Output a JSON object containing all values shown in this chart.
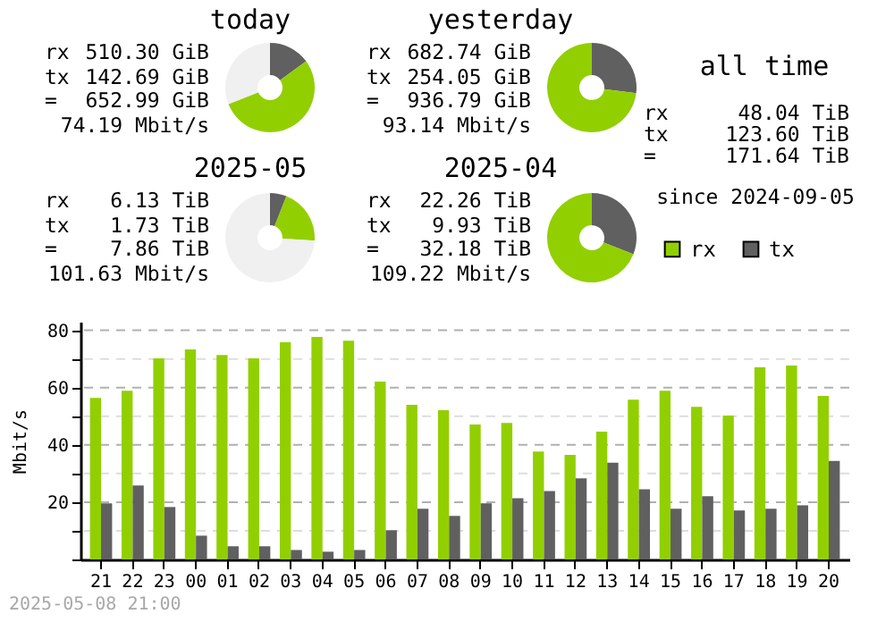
{
  "chart_data": [
    {
      "type": "donut",
      "title": "today",
      "categories": [
        null,
        null,
        null
      ],
      "values": [
        15,
        54,
        31
      ],
      "colors": [
        "#606060",
        "#92cf00",
        "#f0f0f0"
      ],
      "annotations": [
        "rx 510.30 GiB",
        "tx 142.69 GiB",
        "= 652.99 GiB",
        "74.19 Mbit/s"
      ]
    },
    {
      "type": "donut",
      "title": "yesterday",
      "categories": [
        null,
        null
      ],
      "values": [
        27,
        73
      ],
      "colors": [
        "#606060",
        "#92cf00"
      ],
      "annotations": [
        "rx 682.74 GiB",
        "tx 254.05 GiB",
        "= 936.79 GiB",
        "93.14 Mbit/s"
      ]
    },
    {
      "type": "other",
      "title": "all time",
      "annotations": [
        "rx 48.04 TiB",
        "tx 123.60 TiB",
        "= 171.64 TiB",
        "since 2024-09-05"
      ]
    },
    {
      "type": "donut",
      "title": "2025-05",
      "categories": [
        null,
        null,
        null
      ],
      "values": [
        6,
        20,
        74
      ],
      "colors": [
        "#606060",
        "#92cf00",
        "#f0f0f0"
      ],
      "annotations": [
        "rx 6.13 TiB",
        "tx 1.73 TiB",
        "= 7.86 TiB",
        "101.63 Mbit/s"
      ]
    },
    {
      "type": "donut",
      "title": "2025-04",
      "categories": [
        null,
        null
      ],
      "values": [
        31,
        69
      ],
      "colors": [
        "#606060",
        "#92cf00"
      ],
      "annotations": [
        "rx 22.26 TiB",
        "tx 9.93 TiB",
        "= 32.18 TiB",
        "109.22 Mbit/s"
      ]
    },
    {
      "type": "bar",
      "categories": [
        "21",
        "22",
        "23",
        "00",
        "01",
        "02",
        "03",
        "04",
        "05",
        "06",
        "07",
        "08",
        "09",
        "10",
        "11",
        "12",
        "13",
        "14",
        "15",
        "16",
        "17",
        "18",
        "19",
        "20"
      ],
      "ylabel": "Mbit/s",
      "ylim": [
        0,
        83
      ],
      "yticks": [
        {
          "value": 0,
          "label": null
        },
        {
          "value": 10,
          "label": null
        },
        20,
        {
          "value": 30,
          "label": null
        },
        40,
        {
          "value": 50,
          "label": null
        },
        60,
        {
          "value": 70,
          "label": null
        },
        80
      ],
      "grid": "y",
      "legend": "top right",
      "annotations": [
        "2025-05-08 21:00"
      ],
      "series": [
        {
          "name": "rx",
          "color": "#92cf00",
          "values": [
            56.4,
            58.9,
            70.2,
            73.3,
            71.4,
            70.2,
            75.8,
            77.7,
            76.4,
            62.1,
            54.0,
            52.1,
            47.1,
            47.7,
            37.7,
            36.5,
            44.6,
            55.8,
            58.9,
            53.3,
            50.2,
            67.1,
            67.7,
            57.1
          ]
        },
        {
          "name": "tx",
          "color": "#606060",
          "values": [
            19.6,
            25.8,
            18.3,
            8.3,
            4.6,
            4.6,
            3.3,
            2.7,
            3.3,
            10.2,
            17.7,
            15.2,
            19.6,
            21.4,
            23.9,
            28.3,
            33.8,
            24.5,
            17.7,
            22.1,
            17.1,
            17.7,
            18.9,
            34.4
          ]
        }
      ]
    }
  ]
}
